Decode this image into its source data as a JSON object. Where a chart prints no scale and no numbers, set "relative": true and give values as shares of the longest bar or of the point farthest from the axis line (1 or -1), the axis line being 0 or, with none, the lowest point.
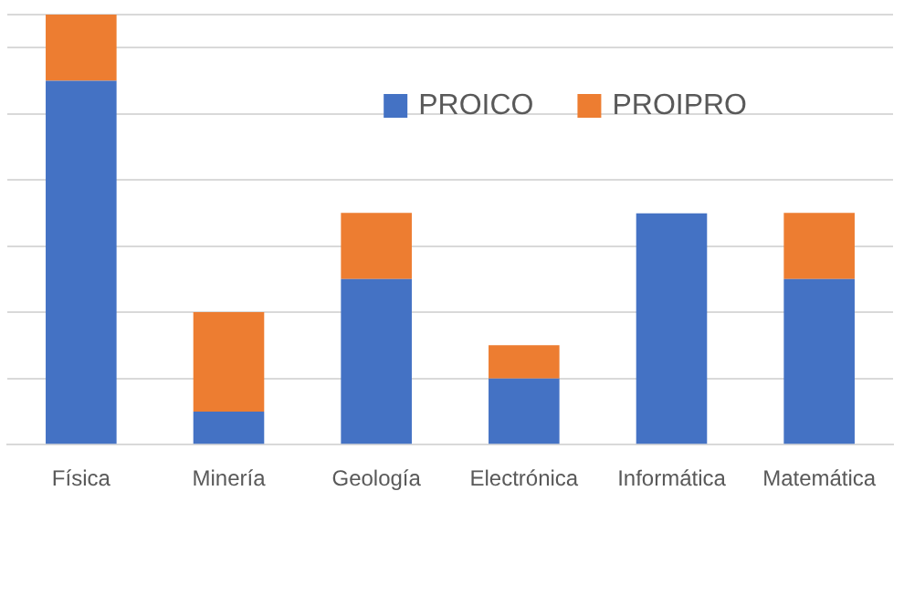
{
  "chart_data": {
    "type": "bar",
    "stacked": true,
    "relative": true,
    "grid": "y",
    "legend": "top right",
    "categories": [
      "Física",
      "Minería",
      "Geología",
      "Electrónica",
      "Informática",
      "Matemática"
    ],
    "series": [
      {
        "name": "PROICO",
        "color": "#4472c4",
        "values": [
          0.846,
          0.077,
          0.385,
          0.154,
          0.538,
          0.385
        ]
      },
      {
        "name": "PROIPRO",
        "color": "#ed7d31",
        "values": [
          0.154,
          0.231,
          0.154,
          0.077,
          0,
          0.154
        ]
      }
    ]
  }
}
